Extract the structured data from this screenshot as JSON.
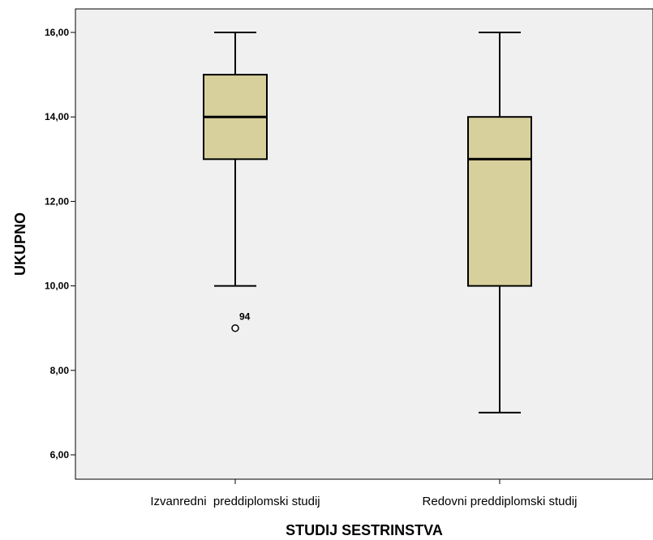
{
  "chart_data": {
    "type": "boxplot",
    "title": "",
    "xlabel": "STUDIJ SESTRINSTVA",
    "ylabel": "UKUPNO",
    "ylim": [
      5.5,
      16.6
    ],
    "yticks": [
      "6,00",
      "8,00",
      "10,00",
      "12,00",
      "14,00",
      "16,00"
    ],
    "ytick_values": [
      6,
      8,
      10,
      12,
      14,
      16
    ],
    "grid": false,
    "categories": [
      "Izvanredni  preddiplomski studij",
      "Redovni preddiplomski studij"
    ],
    "boxes": [
      {
        "whisker_low": 10,
        "q1": 13,
        "median": 14,
        "q3": 15,
        "whisker_high": 16,
        "outliers": [
          {
            "value": 9,
            "label": "94"
          }
        ]
      },
      {
        "whisker_low": 7,
        "q1": 10,
        "median": 13,
        "q3": 14,
        "whisker_high": 16,
        "outliers": []
      }
    ],
    "colors": {
      "plot_background": "#f0f0f0",
      "box_fill": "#d8d09c",
      "line": "#000000"
    }
  }
}
